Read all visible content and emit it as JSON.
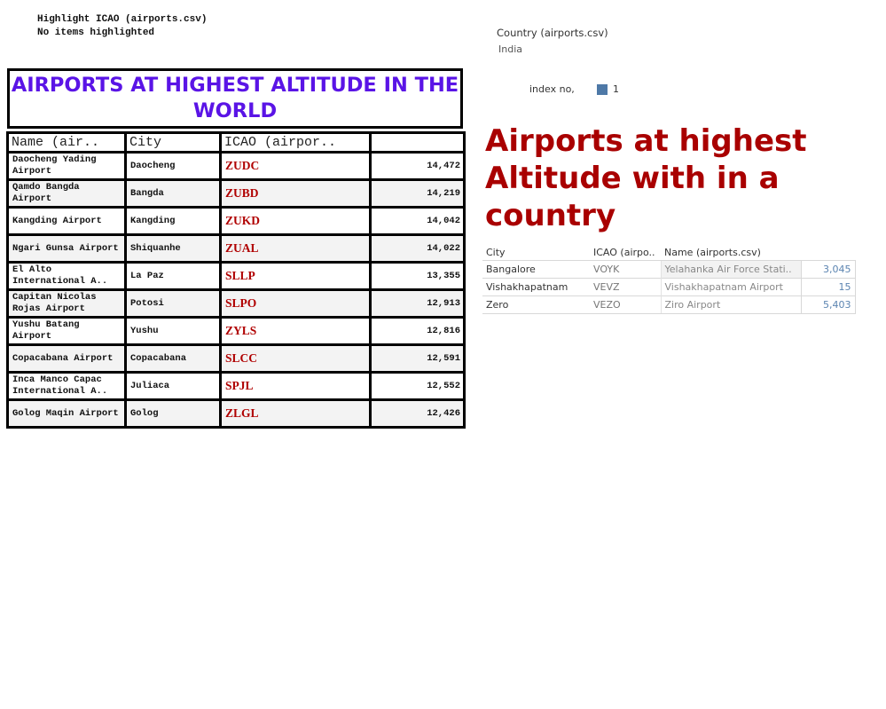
{
  "highlight": {
    "title": "Highlight ICAO (airports.csv)",
    "status": "No items highlighted"
  },
  "country_filter": {
    "label": "Country (airports.csv)",
    "value": "India"
  },
  "legend": {
    "label": "index no,",
    "value": "1",
    "color": "#4e79a7"
  },
  "world": {
    "title": "AIRPORTS AT HIGHEST ALTITUDE IN THE WORLD",
    "title_color": "#5a14e6",
    "headers": {
      "name": "Name (air..",
      "city": "City",
      "icao": "ICAO (airpor..",
      "altitude": ""
    },
    "rows": [
      {
        "name": "Daocheng Yading Airport",
        "city": "Daocheng",
        "icao": "ZUDC",
        "altitude": "14,472"
      },
      {
        "name": "Qamdo Bangda Airport",
        "city": "Bangda",
        "icao": "ZUBD",
        "altitude": "14,219"
      },
      {
        "name": "Kangding Airport",
        "city": "Kangding",
        "icao": "ZUKD",
        "altitude": "14,042"
      },
      {
        "name": "Ngari Gunsa Airport",
        "city": "Shiquanhe",
        "icao": "ZUAL",
        "altitude": "14,022"
      },
      {
        "name": "El Alto International A..",
        "city": "La Paz",
        "icao": "SLLP",
        "altitude": "13,355"
      },
      {
        "name": "Capitan Nicolas Rojas Airport",
        "city": "Potosi",
        "icao": "SLPO",
        "altitude": "12,913"
      },
      {
        "name": "Yushu Batang Airport",
        "city": "Yushu",
        "icao": "ZYLS",
        "altitude": "12,816"
      },
      {
        "name": "Copacabana Airport",
        "city": "Copacabana",
        "icao": "SLCC",
        "altitude": "12,591"
      },
      {
        "name": "Inca Manco Capac International A..",
        "city": "Juliaca",
        "icao": "SPJL",
        "altitude": "12,552"
      },
      {
        "name": "Golog Maqin Airport",
        "city": "Golog",
        "icao": "ZLGL",
        "altitude": "12,426"
      }
    ]
  },
  "country": {
    "title": "Airports at highest Altitude with in a country",
    "title_color": "#a90000",
    "headers": {
      "city": "City",
      "icao": "ICAO (airpo..",
      "name": "Name (airports.csv)",
      "index": ""
    },
    "rows": [
      {
        "city": "Bangalore",
        "icao": "VOYK",
        "name": "Yelahanka Air Force Stati..",
        "index": "3,045"
      },
      {
        "city": "Vishakhapatnam",
        "icao": "VEVZ",
        "name": "Vishakhapatnam Airport",
        "index": "15"
      },
      {
        "city": "Zero",
        "icao": "VEZO",
        "name": "Ziro Airport",
        "index": "5,403"
      }
    ]
  }
}
